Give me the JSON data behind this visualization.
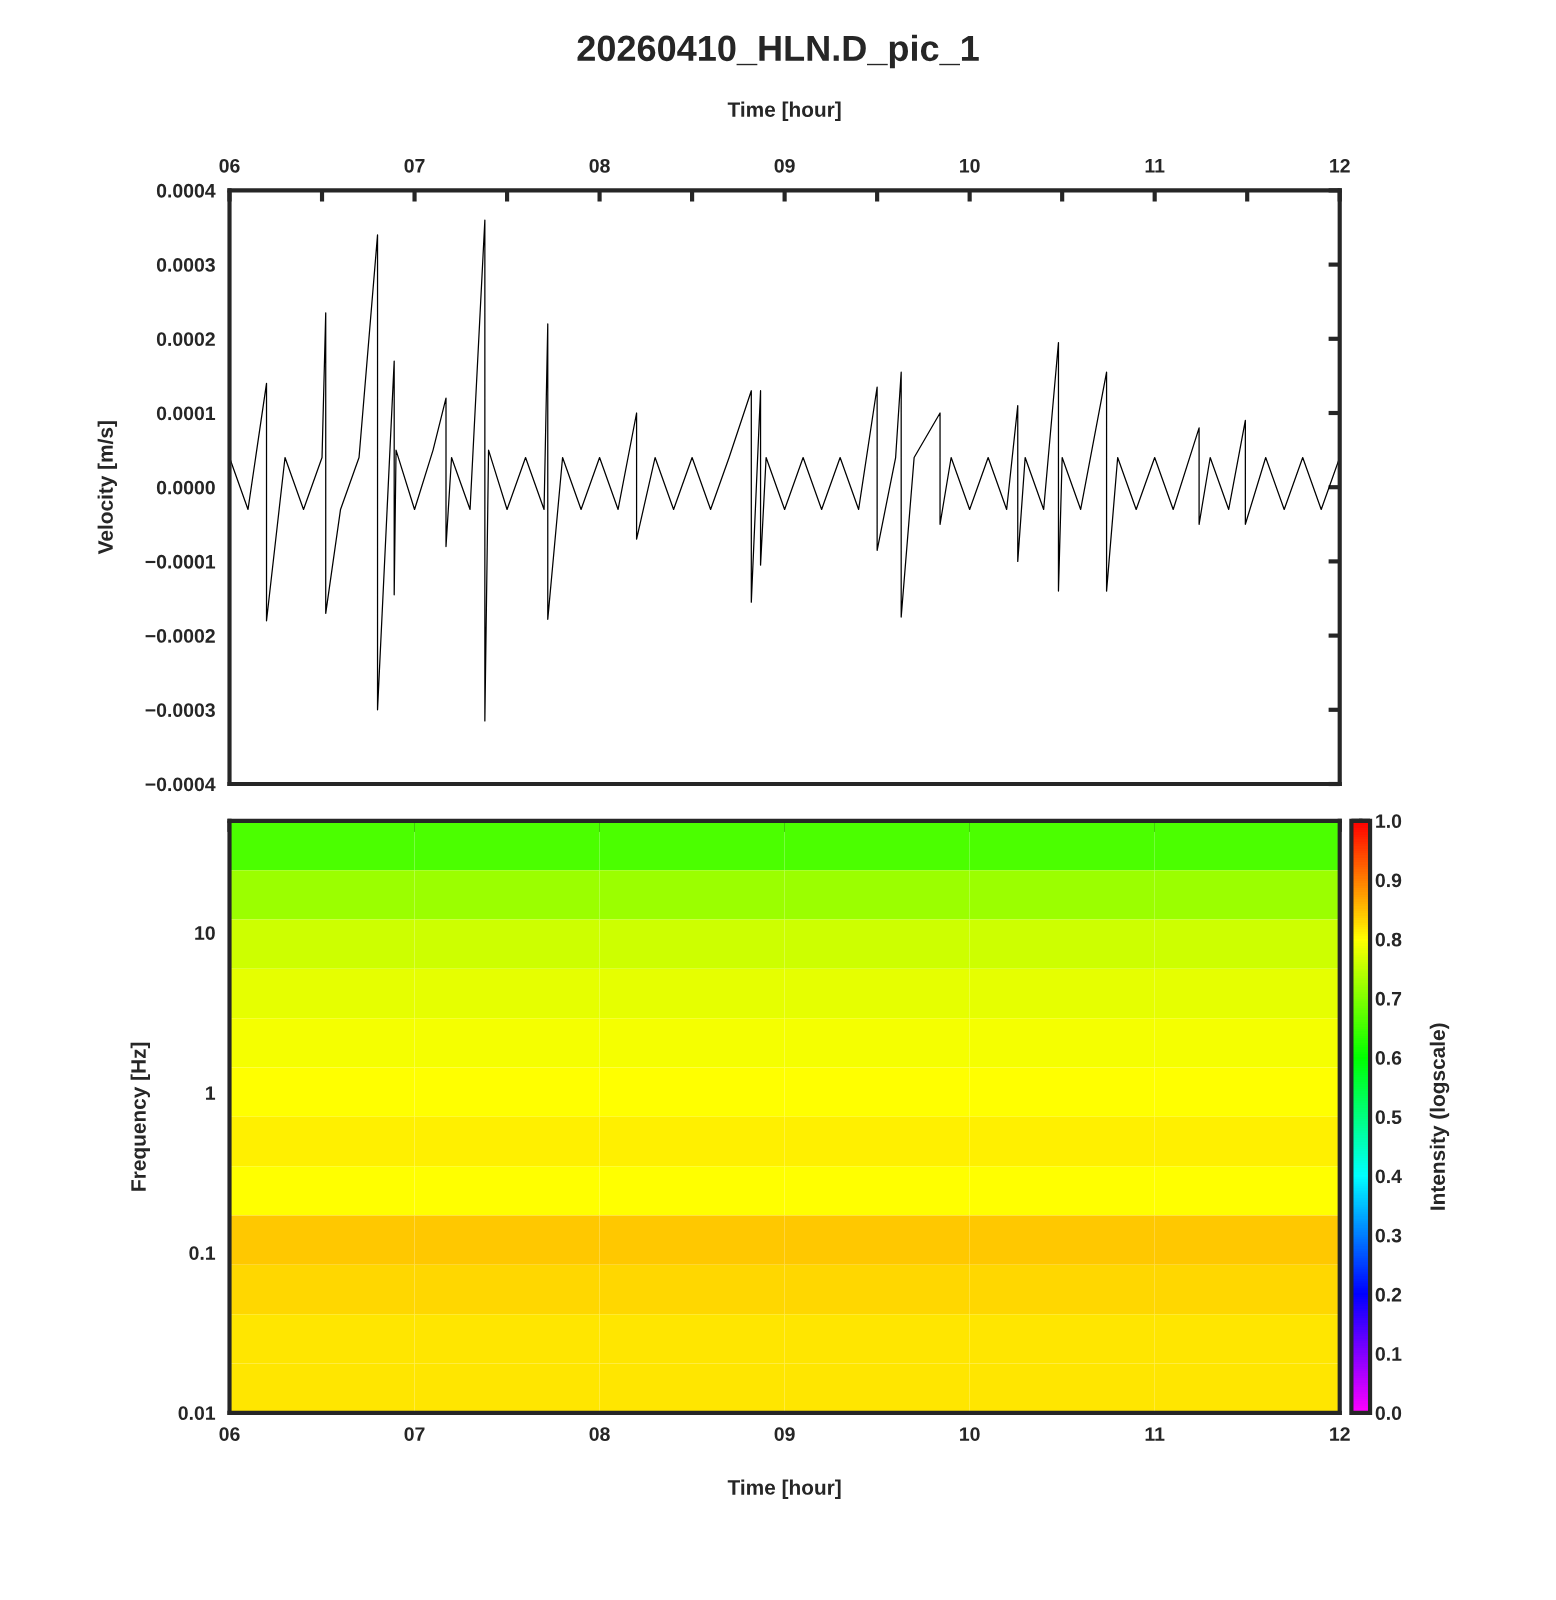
{
  "chart_data": [
    {
      "type": "line",
      "title": "20260410_HLN.D_pic_1",
      "ylabel": "Velocity [m/s]",
      "xlabel": "Time [hour]",
      "x": [
        6.0,
        6.1,
        6.2,
        6.2,
        6.3,
        6.4,
        6.5,
        6.52,
        6.52,
        6.6,
        6.7,
        6.8,
        6.8,
        6.89,
        6.89,
        6.9,
        7.0,
        7.1,
        7.17,
        7.17,
        7.2,
        7.3,
        7.38,
        7.38,
        7.4,
        7.5,
        7.6,
        7.7,
        7.72,
        7.72,
        7.8,
        7.9,
        8.0,
        8.1,
        8.2,
        8.2,
        8.3,
        8.4,
        8.5,
        8.6,
        8.7,
        8.82,
        8.82,
        8.87,
        8.87,
        8.9,
        9.0,
        9.1,
        9.2,
        9.3,
        9.4,
        9.5,
        9.5,
        9.6,
        9.63,
        9.63,
        9.7,
        9.84,
        9.84,
        9.9,
        10.0,
        10.1,
        10.2,
        10.26,
        10.26,
        10.3,
        10.4,
        10.48,
        10.48,
        10.5,
        10.6,
        10.74,
        10.74,
        10.8,
        10.9,
        11.0,
        11.1,
        11.24,
        11.24,
        11.3,
        11.4,
        11.49,
        11.49,
        11.6,
        11.7,
        11.8,
        11.9,
        12.0
      ],
      "series": [
        {
          "color": "#000000",
          "values": [
            4e-05,
            -3e-05,
            0.00014,
            -0.00018,
            4e-05,
            -3e-05,
            4e-05,
            0.000235,
            -0.00017,
            -3e-05,
            4e-05,
            0.00034,
            -0.0003,
            0.00017,
            -0.000145,
            5e-05,
            -3e-05,
            5e-05,
            0.00012,
            -8e-05,
            4e-05,
            -3e-05,
            0.00036,
            -0.000315,
            5e-05,
            -3e-05,
            4e-05,
            -3e-05,
            0.00022,
            -0.000178,
            4e-05,
            -3e-05,
            4e-05,
            -3e-05,
            0.0001,
            -7e-05,
            4e-05,
            -3e-05,
            4e-05,
            -3e-05,
            4e-05,
            0.00013,
            -0.000155,
            0.00013,
            -0.000105,
            4e-05,
            -3e-05,
            4e-05,
            -3e-05,
            4e-05,
            -3e-05,
            0.000135,
            -8.5e-05,
            4e-05,
            0.000155,
            -0.000175,
            4e-05,
            0.0001,
            -5e-05,
            4e-05,
            -3e-05,
            4e-05,
            -3e-05,
            0.00011,
            -0.0001,
            4e-05,
            -3e-05,
            0.000195,
            -0.00014,
            4e-05,
            -3e-05,
            0.000155,
            -0.00014,
            4e-05,
            -3e-05,
            4e-05,
            -3e-05,
            8e-05,
            -5e-05,
            4e-05,
            -3e-05,
            9e-05,
            -5e-05,
            4e-05,
            -3e-05,
            4e-05,
            -3e-05,
            4e-05
          ]
        }
      ],
      "xlim": [
        6,
        12
      ],
      "xticks": [
        {
          "value": 6,
          "label": "06"
        },
        {
          "value": 6.5,
          "label": null
        },
        {
          "value": 7,
          "label": "07"
        },
        {
          "value": 7.5,
          "label": null
        },
        {
          "value": 8,
          "label": "08"
        },
        {
          "value": 8.5,
          "label": null
        },
        {
          "value": 9,
          "label": "09"
        },
        {
          "value": 9.5,
          "label": null
        },
        {
          "value": 10,
          "label": "10"
        },
        {
          "value": 10.5,
          "label": null
        },
        {
          "value": 11,
          "label": "11"
        },
        {
          "value": 11.5,
          "label": null
        },
        {
          "value": 12,
          "label": "12"
        }
      ],
      "ylim": [
        -0.0004,
        0.0004
      ],
      "yticks": [
        {
          "value": -0.0004,
          "label": "−0.0004"
        },
        {
          "value": -0.0003,
          "label": "−0.0003"
        },
        {
          "value": -0.0002,
          "label": "−0.0002"
        },
        {
          "value": -0.0001,
          "label": "−0.0001"
        },
        {
          "value": 0,
          "label": "0.0000"
        },
        {
          "value": 0.0001,
          "label": "0.0001"
        },
        {
          "value": 0.0002,
          "label": "0.0002"
        },
        {
          "value": 0.0003,
          "label": "0.0003"
        },
        {
          "value": 0.0004,
          "label": "0.0004"
        }
      ],
      "grid": false,
      "legend": false,
      "line_style": "solid",
      "marker": "none"
    },
    {
      "type": "heatmap",
      "xlabel": "Time [hour]",
      "ylabel": "Frequency [Hz]",
      "clabel": "Intensity (logscale)",
      "log": "y",
      "cells": [
        [
          0.66,
          0.66,
          0.66,
          0.66,
          0.66,
          0.66
        ],
        [
          0.72,
          0.72,
          0.72,
          0.72,
          0.72,
          0.72
        ],
        [
          0.76,
          0.76,
          0.76,
          0.76,
          0.76,
          0.76
        ],
        [
          0.78,
          0.78,
          0.78,
          0.78,
          0.78,
          0.78
        ],
        [
          0.79,
          0.79,
          0.79,
          0.79,
          0.79,
          0.79
        ],
        [
          0.8,
          0.8,
          0.8,
          0.8,
          0.8,
          0.8
        ],
        [
          0.81,
          0.81,
          0.81,
          0.81,
          0.81,
          0.81
        ],
        [
          0.8,
          0.8,
          0.8,
          0.8,
          0.8,
          0.8
        ],
        [
          0.84,
          0.84,
          0.84,
          0.84,
          0.84,
          0.84
        ],
        [
          0.83,
          0.83,
          0.83,
          0.83,
          0.83,
          0.83
        ],
        [
          0.82,
          0.82,
          0.82,
          0.82,
          0.82,
          0.82
        ],
        [
          0.82,
          0.82,
          0.82,
          0.82,
          0.82,
          0.82
        ]
      ],
      "clim": [
        0,
        1
      ],
      "cticks": [
        {
          "value": 0,
          "label": "0.0"
        },
        {
          "value": 0.1,
          "label": "0.1"
        },
        {
          "value": 0.2,
          "label": "0.2"
        },
        {
          "value": 0.3,
          "label": "0.3"
        },
        {
          "value": 0.4,
          "label": "0.4"
        },
        {
          "value": 0.5,
          "label": "0.5"
        },
        {
          "value": 0.6,
          "label": "0.6"
        },
        {
          "value": 0.7,
          "label": "0.7"
        },
        {
          "value": 0.8,
          "label": "0.8"
        },
        {
          "value": 0.9,
          "label": "0.9"
        },
        {
          "value": 1,
          "label": "1.0"
        }
      ],
      "xlim": [
        6,
        12
      ],
      "xticks": [
        {
          "value": 6,
          "label": "06"
        },
        {
          "value": 6.5,
          "label": null
        },
        {
          "value": 7,
          "label": "07"
        },
        {
          "value": 7.5,
          "label": null
        },
        {
          "value": 8,
          "label": "08"
        },
        {
          "value": 8.5,
          "label": null
        },
        {
          "value": 9,
          "label": "09"
        },
        {
          "value": 9.5,
          "label": null
        },
        {
          "value": 10,
          "label": "10"
        },
        {
          "value": 10.5,
          "label": null
        },
        {
          "value": 11,
          "label": "11"
        },
        {
          "value": 11.5,
          "label": null
        },
        {
          "value": 12,
          "label": "12"
        }
      ],
      "ylim": [
        0.01,
        50
      ],
      "yticks": [
        0.01,
        0.1,
        1,
        10
      ],
      "grid": false
    }
  ]
}
